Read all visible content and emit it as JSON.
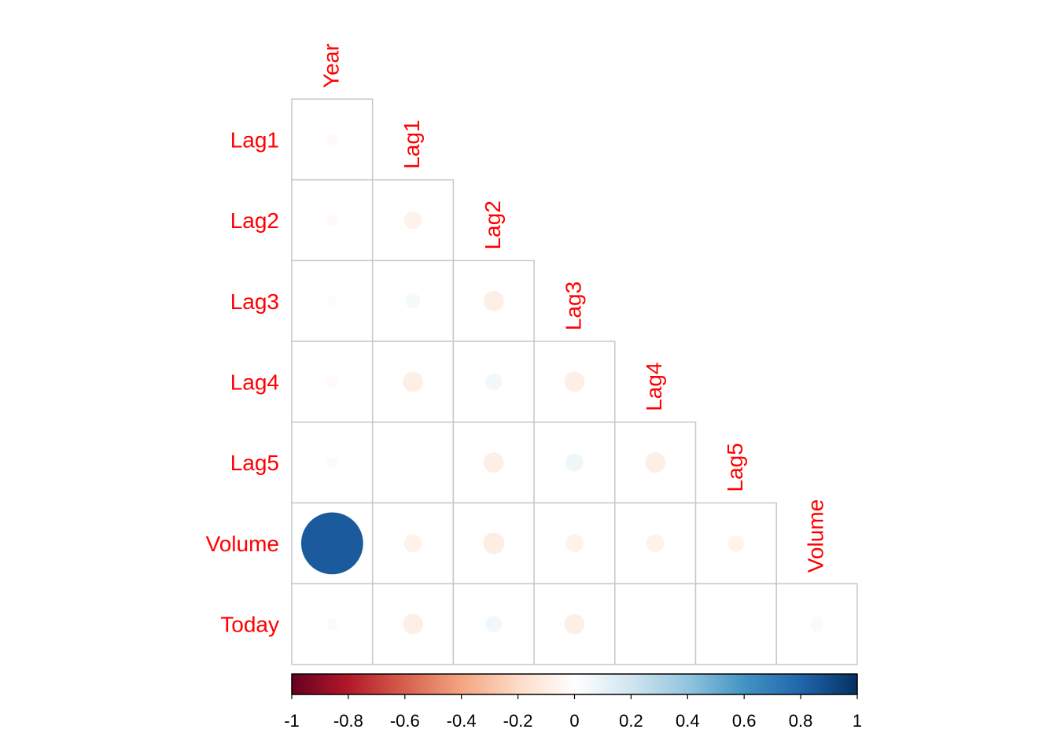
{
  "chart_data": {
    "type": "heatmap",
    "variables": [
      "Year",
      "Lag1",
      "Lag2",
      "Lag3",
      "Lag4",
      "Lag5",
      "Volume",
      "Today"
    ],
    "row_labels": [
      "Lag1",
      "Lag2",
      "Lag3",
      "Lag4",
      "Lag5",
      "Volume",
      "Today"
    ],
    "col_labels": [
      "Year",
      "Lag1",
      "Lag2",
      "Lag3",
      "Lag4",
      "Lag5",
      "Volume"
    ],
    "correlations": [
      [
        -0.03
      ],
      [
        -0.03,
        -0.07
      ],
      [
        -0.02,
        0.05,
        -0.09
      ],
      [
        -0.03,
        -0.09,
        0.06,
        -0.09
      ],
      [
        -0.03,
        0.0,
        -0.09,
        0.07,
        -0.09
      ],
      [
        0.84,
        -0.07,
        -0.1,
        -0.07,
        -0.07,
        -0.06
      ],
      [
        -0.03,
        -0.09,
        0.06,
        -0.09,
        0.0,
        0.01,
        -0.04
      ]
    ],
    "colorbar": {
      "range": [
        -1,
        1
      ],
      "ticks": [
        "-1",
        "-0.8",
        "-0.6",
        "-0.4",
        "-0.2",
        "0",
        "0.2",
        "0.4",
        "0.6",
        "0.8",
        "1"
      ]
    },
    "colors": {
      "labels": "#ff0000",
      "grid": "#c8c8c8",
      "negative_end": "#67001f",
      "positive_end": "#053061",
      "midpoint": "#ffffff"
    }
  }
}
